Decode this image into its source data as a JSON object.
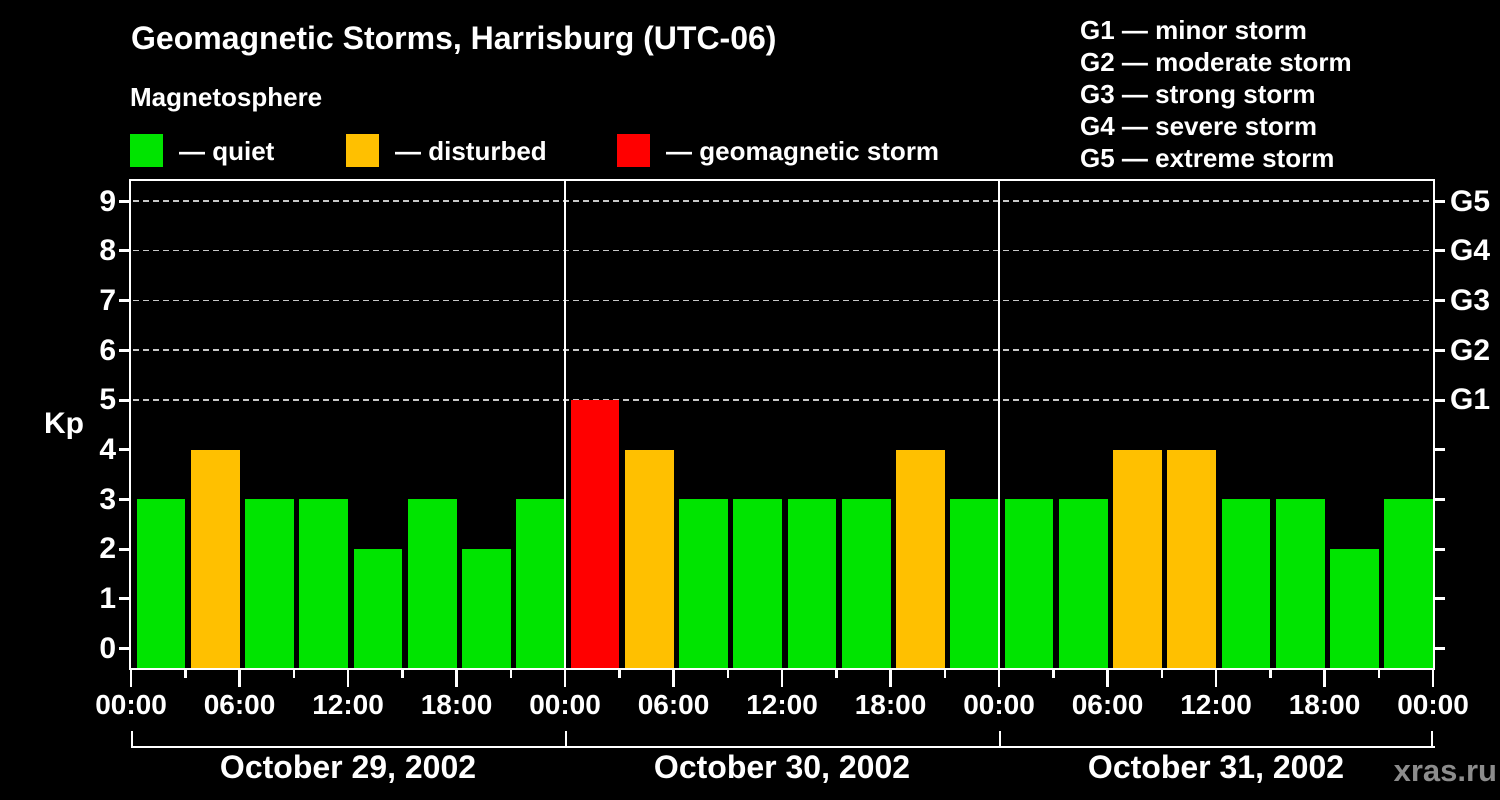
{
  "title": "Geomagnetic Storms, Harrisburg (UTC-06)",
  "subtitle": "Magnetosphere",
  "dash": "—",
  "legend": [
    {
      "key": "quiet",
      "label": "quiet",
      "color": "#00e400"
    },
    {
      "key": "disturbed",
      "label": "disturbed",
      "color": "#ffc000"
    },
    {
      "key": "storm",
      "label": "geomagnetic storm",
      "color": "#ff0000"
    }
  ],
  "g_scale_legend": [
    {
      "code": "G1",
      "label": "minor storm"
    },
    {
      "code": "G2",
      "label": "moderate storm"
    },
    {
      "code": "G3",
      "label": "strong storm"
    },
    {
      "code": "G4",
      "label": "severe storm"
    },
    {
      "code": "G5",
      "label": "extreme storm"
    }
  ],
  "watermark": "xras.ru",
  "colors": {
    "background": "#000000",
    "text": "#ffffff",
    "axis": "#ffffff",
    "gridline": "#c8c8c8",
    "watermark": "#8c8c8c",
    "quiet": "#00e400",
    "disturbed": "#ffc000",
    "storm": "#ff0000"
  },
  "chart_data": {
    "type": "bar",
    "title": "Geomagnetic Storms, Harrisburg (UTC-06)",
    "subtitle": "Magnetosphere",
    "ylabel": "Kp",
    "ylim": [
      0,
      9
    ],
    "yticks": [
      0,
      1,
      2,
      3,
      4,
      5,
      6,
      7,
      8,
      9
    ],
    "gridlines_at_kp": [
      5,
      6,
      7,
      8,
      9
    ],
    "grid": "dashed horizontal at G-storm levels only",
    "right_axis_labels": [
      {
        "label": "G5",
        "kp": 9
      },
      {
        "label": "G4",
        "kp": 8
      },
      {
        "label": "G3",
        "kp": 7
      },
      {
        "label": "G2",
        "kp": 6
      },
      {
        "label": "G1",
        "kp": 5
      }
    ],
    "x_tick_every_hours": 3,
    "x_label_every_hours": 6,
    "x_labels": [
      "00:00",
      "06:00",
      "12:00",
      "18:00",
      "00:00",
      "06:00",
      "12:00",
      "18:00",
      "00:00",
      "06:00",
      "12:00",
      "18:00",
      "00:00"
    ],
    "bar_interval_hours": 3,
    "color_rule": {
      "quiet": "Kp <= 3",
      "disturbed": "Kp = 4",
      "storm": "Kp >= 5"
    },
    "days": [
      {
        "date": "October 29, 2002",
        "values": [
          3,
          4,
          3,
          3,
          2,
          3,
          2,
          3
        ]
      },
      {
        "date": "October 30, 2002",
        "values": [
          5,
          4,
          3,
          3,
          3,
          3,
          4,
          3
        ]
      },
      {
        "date": "October 31, 2002",
        "values": [
          3,
          3,
          4,
          4,
          3,
          3,
          2,
          3
        ]
      }
    ],
    "legend_position": "top-left under subtitle; G-scale meanings top-right"
  }
}
